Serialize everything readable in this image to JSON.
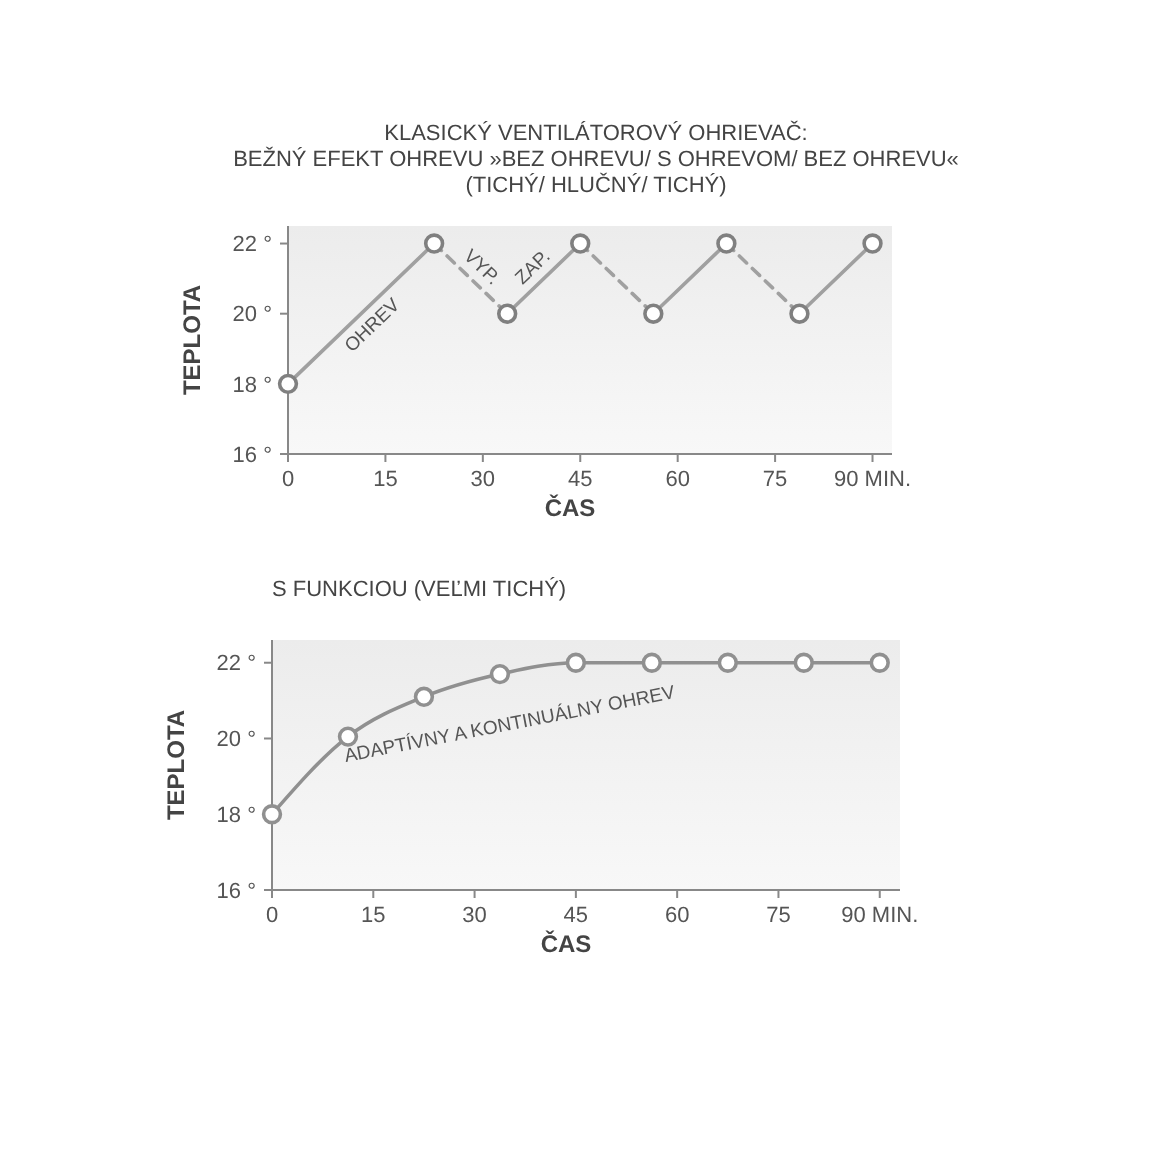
{
  "chart_data": [
    {
      "type": "line",
      "title": "KLASICKÝ VENTILÁTOROVÝ OHRIEVAČ:",
      "subtitle": "BEŽNÝ EFEKT OHREVU »BEZ OHREVU/ S OHREVOM/ BEZ OHREVU«\n(TICHÝ/ HLUČNÝ/ TICHÝ)",
      "xlabel": "ČAS",
      "ylabel": "TEPLOTA",
      "xlim": [
        0,
        93
      ],
      "ylim": [
        16,
        22.5
      ],
      "xticks": [
        0,
        15,
        30,
        45,
        60,
        75,
        {
          "value": 90,
          "label": "90 MIN."
        }
      ],
      "yticks": [
        {
          "value": 16,
          "label": "16 °"
        },
        {
          "value": 18,
          "label": "18 °"
        },
        {
          "value": 20,
          "label": "20 °"
        },
        {
          "value": 22,
          "label": "22 °"
        }
      ],
      "grid": false,
      "series": [
        {
          "type": "line",
          "color": "#a0a0a0",
          "line_style": "solid",
          "marker": "none",
          "x": [
            0,
            22.5
          ],
          "values": [
            18,
            22
          ]
        },
        {
          "type": "line",
          "color": "#a0a0a0",
          "line_style": "dashed",
          "marker": "none",
          "x": [
            22.5,
            33.75
          ],
          "values": [
            22,
            20
          ]
        },
        {
          "type": "line",
          "color": "#a0a0a0",
          "line_style": "solid",
          "marker": "none",
          "x": [
            33.75,
            45
          ],
          "values": [
            20,
            22
          ]
        },
        {
          "type": "line",
          "color": "#a0a0a0",
          "line_style": "dashed",
          "marker": "none",
          "x": [
            45,
            56.25
          ],
          "values": [
            22,
            20
          ]
        },
        {
          "type": "line",
          "color": "#a0a0a0",
          "line_style": "solid",
          "marker": "none",
          "x": [
            56.25,
            67.5
          ],
          "values": [
            20,
            22
          ]
        },
        {
          "type": "line",
          "color": "#a0a0a0",
          "line_style": "dashed",
          "marker": "none",
          "x": [
            67.5,
            78.75
          ],
          "values": [
            22,
            20
          ]
        },
        {
          "type": "line",
          "color": "#a0a0a0",
          "line_style": "solid",
          "marker": "none",
          "x": [
            78.75,
            90
          ],
          "values": [
            20,
            22
          ]
        },
        {
          "type": "scatter",
          "color": "#808080",
          "marker": "circle",
          "x": [
            0,
            22.5,
            33.75,
            45,
            56.25,
            67.5,
            78.75,
            90
          ],
          "values": [
            18,
            22,
            20,
            22,
            20,
            22,
            20,
            22
          ]
        }
      ],
      "annotations": [
        {
          "text": "OHREV",
          "x": 11.25,
          "y": 20
        },
        {
          "text": "VYP.",
          "x": 28.125,
          "y": 21
        },
        {
          "text": "ZAP.",
          "x": 39.375,
          "y": 21
        }
      ]
    },
    {
      "type": "line",
      "title": "S FUNKCIOU (VEĽMI TICHÝ)",
      "xlabel": "ČAS",
      "ylabel": "TEPLOTA",
      "xlim": [
        0,
        93
      ],
      "ylim": [
        16,
        22.6
      ],
      "xticks": [
        0,
        15,
        30,
        45,
        60,
        75,
        {
          "value": 90,
          "label": "90 MIN."
        }
      ],
      "yticks": [
        {
          "value": 16,
          "label": "16 °"
        },
        {
          "value": 18,
          "label": "18 °"
        },
        {
          "value": 20,
          "label": "20 °"
        },
        {
          "value": 22,
          "label": "22 °"
        }
      ],
      "grid": false,
      "series": [
        {
          "type": "line",
          "color": "#909090",
          "line_style": "solid",
          "marker": "circle",
          "x": [
            0,
            11.25,
            22.5,
            33.75,
            45,
            56.25,
            67.5,
            78.75,
            90
          ],
          "values": [
            18,
            20.05,
            21.1,
            21.7,
            22,
            22,
            22,
            22,
            22
          ]
        }
      ],
      "annotations": [
        "ADAPTÍVNY A KONTINUÁLNY OHREV"
      ]
    }
  ]
}
